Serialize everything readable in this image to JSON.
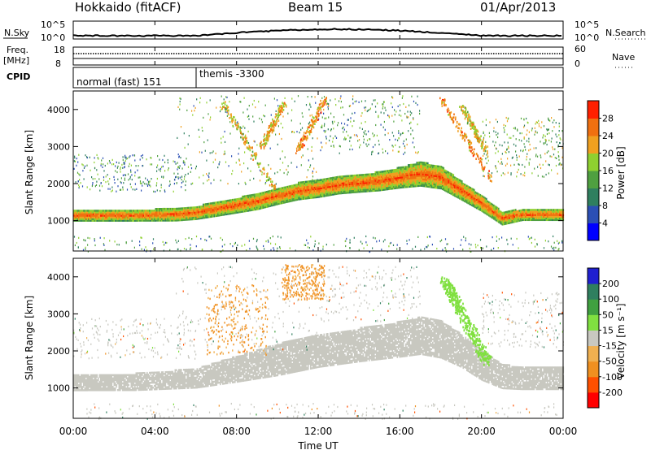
{
  "header": {
    "station": "Hokkaido (fitACF)",
    "beam": "Beam 15",
    "date": "01/Apr/2013"
  },
  "nsky_panel": {
    "left_label": "N.Sky",
    "right_label": "N.Search",
    "left_ticks": [
      "10^5",
      "10^0"
    ],
    "right_ticks": [
      "10^5",
      "10^0"
    ]
  },
  "freq_panel": {
    "left_label_1": "Freq.",
    "left_label_2": "[MHz]",
    "right_label": "Nave",
    "left_ticks": [
      "18",
      "8"
    ],
    "right_ticks": [
      "60",
      "0"
    ]
  },
  "cpid_panel": {
    "label": "CPID",
    "modes": [
      {
        "name": "normal (fast) 151",
        "start_hour": 0
      },
      {
        "name": "themis -3300",
        "start_hour": 6
      }
    ]
  },
  "chart_data": [
    {
      "type": "heatmap",
      "name": "power",
      "xlabel": "Time UT",
      "ylabel": "Slant Range [km]",
      "xlim": [
        0,
        24
      ],
      "ylim": [
        180,
        4500
      ],
      "yticks": [
        1000,
        2000,
        3000,
        4000
      ],
      "ytick_labels": [
        "1000",
        "2000",
        "3000",
        "4000"
      ],
      "colorbar": {
        "label": "Power [dB]",
        "bounds": [
          0,
          4,
          8,
          12,
          16,
          20,
          24,
          28,
          32
        ],
        "tick_labels": [
          "4",
          "8",
          "12",
          "16",
          "20",
          "24",
          "28"
        ],
        "colors": [
          "#0000ff",
          "#2b4fb5",
          "#2f7f5f",
          "#4fa040",
          "#8fd030",
          "#f0a020",
          "#f07010",
          "#ff2000"
        ]
      },
      "echo_bands": [
        {
          "t": [
            0,
            3,
            5,
            6,
            7,
            8,
            9,
            10,
            11,
            12,
            13,
            14,
            15,
            16,
            17,
            18,
            19,
            20,
            21,
            22,
            23,
            24
          ],
          "center_km": [
            1130,
            1130,
            1150,
            1200,
            1300,
            1400,
            1500,
            1650,
            1780,
            1850,
            1950,
            2000,
            2050,
            2150,
            2250,
            2150,
            1800,
            1450,
            1050,
            1150,
            1150,
            1150
          ],
          "width_km": [
            300,
            300,
            330,
            350,
            380,
            400,
            420,
            440,
            450,
            460,
            470,
            480,
            500,
            550,
            650,
            600,
            500,
            420,
            350,
            300,
            300,
            300
          ],
          "power_db": 28
        }
      ],
      "streaks": [
        {
          "t0": 7.3,
          "r0": 4200,
          "t1": 10.0,
          "r1": 1700,
          "power_db": 20
        },
        {
          "t0": 10.3,
          "r0": 4200,
          "t1": 9.2,
          "r1": 3000,
          "power_db": 22
        },
        {
          "t0": 12.3,
          "r0": 4300,
          "t1": 11.0,
          "r1": 2900,
          "power_db": 24
        },
        {
          "t0": 18.0,
          "r0": 4300,
          "t1": 20.5,
          "r1": 2100,
          "power_db": 24
        },
        {
          "t0": 19.0,
          "r0": 4100,
          "t1": 20.2,
          "r1": 2900,
          "power_db": 20
        }
      ],
      "sparse_regions": [
        {
          "t": [
            0,
            5.5
          ],
          "r": [
            1800,
            2800
          ],
          "power_db": 12
        },
        {
          "t": [
            5,
            12
          ],
          "r": [
            2000,
            4400
          ],
          "power_db": 14
        },
        {
          "t": [
            12,
            17
          ],
          "r": [
            2800,
            4400
          ],
          "power_db": 14
        },
        {
          "t": [
            20,
            24
          ],
          "r": [
            2200,
            3800
          ],
          "power_db": 16
        },
        {
          "t": [
            0,
            24
          ],
          "r": [
            180,
            600
          ],
          "power_db": 12
        }
      ]
    },
    {
      "type": "heatmap",
      "name": "velocity",
      "xlabel": "Time UT",
      "ylabel": "Slant Range [km]",
      "xlim": [
        0,
        24
      ],
      "ylim": [
        180,
        4500
      ],
      "xticks": [
        0,
        4,
        8,
        12,
        16,
        20,
        24
      ],
      "xtick_labels": [
        "00:00",
        "04:00",
        "08:00",
        "12:00",
        "16:00",
        "20:00",
        "00:00"
      ],
      "yticks": [
        1000,
        2000,
        3000,
        4000
      ],
      "ytick_labels": [
        "1000",
        "2000",
        "3000",
        "4000"
      ],
      "colorbar": {
        "label": "Velocity [m s⁻¹]",
        "bounds": [
          -250,
          -200,
          -100,
          -50,
          -15,
          15,
          50,
          100,
          200,
          250
        ],
        "tick_labels": [
          "-200",
          "-100",
          "-50",
          "-15",
          "15",
          "50",
          "100",
          "200"
        ],
        "colors": [
          "#ff0000",
          "#ff5000",
          "#f09020",
          "#f0b050",
          "#c8c8c0",
          "#80e040",
          "#40a040",
          "#2f7f5f",
          "#2020d0"
        ]
      },
      "ground_scatter_band": {
        "t": [
          0,
          3,
          6,
          8,
          10,
          12,
          14,
          16,
          17,
          18,
          19,
          20,
          21,
          22,
          24
        ],
        "center_km": [
          1130,
          1150,
          1250,
          1500,
          1750,
          2000,
          2150,
          2300,
          2400,
          2300,
          2000,
          1600,
          1300,
          1250,
          1250
        ],
        "width_km": [
          420,
          450,
          520,
          700,
          850,
          900,
          900,
          950,
          1000,
          1000,
          900,
          800,
          650,
          600,
          600
        ]
      },
      "green_streak": {
        "t0": 18.1,
        "r0": 4000,
        "t1": 20.3,
        "r1": 1700,
        "velocity": 30
      },
      "orange_patches": [
        {
          "t": [
            6.5,
            9.5
          ],
          "r": [
            1900,
            3800
          ],
          "velocity": -60
        },
        {
          "t": [
            10.2,
            12.3
          ],
          "r": [
            3400,
            4350
          ],
          "velocity": -60
        }
      ]
    }
  ]
}
